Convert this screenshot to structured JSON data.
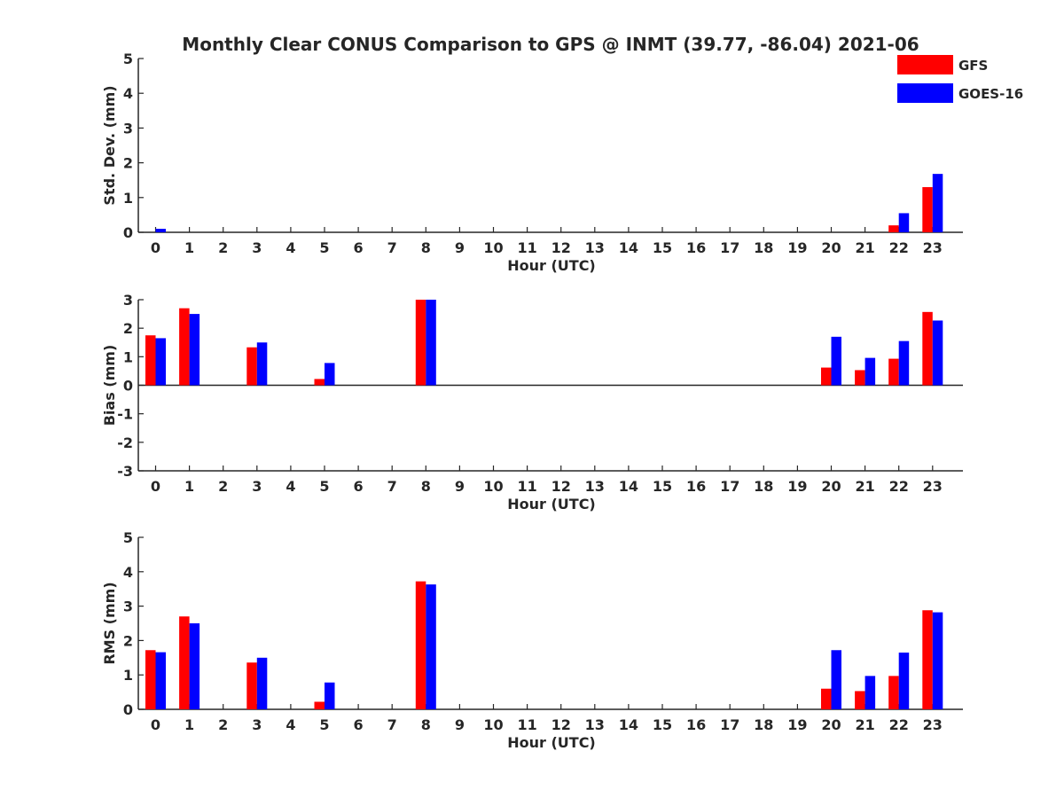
{
  "figure": {
    "title": "Monthly Clear CONUS Comparison to GPS @ INMT (39.77, -86.04) 2021-06"
  },
  "legend": {
    "placement": "top-right",
    "entries": [
      {
        "label": "GFS",
        "color": "#ff0000"
      },
      {
        "label": "GOES-16",
        "color": "#0000ff"
      }
    ]
  },
  "chart_data": [
    {
      "type": "bar",
      "xlabel": "Hour (UTC)",
      "ylabel": "Std. Dev. (mm)",
      "ylim": [
        0,
        5
      ],
      "yticks": [
        0,
        1,
        2,
        3,
        4,
        5
      ],
      "categories": [
        "0",
        "1",
        "2",
        "3",
        "4",
        "5",
        "6",
        "7",
        "8",
        "9",
        "10",
        "11",
        "12",
        "13",
        "14",
        "15",
        "16",
        "17",
        "18",
        "19",
        "20",
        "21",
        "22",
        "23"
      ],
      "series": [
        {
          "name": "GFS",
          "color": "#ff0000",
          "values": [
            0,
            0,
            0,
            0,
            0,
            0,
            0,
            0,
            0,
            0,
            0,
            0,
            0,
            0,
            0,
            0,
            0,
            0,
            0,
            0,
            0,
            0,
            0.2,
            1.3
          ]
        },
        {
          "name": "GOES-16",
          "color": "#0000ff",
          "values": [
            0.1,
            0,
            0,
            0,
            0,
            0,
            0,
            0,
            0,
            0,
            0,
            0,
            0,
            0,
            0,
            0,
            0,
            0,
            0,
            0,
            0,
            0,
            0.55,
            1.68
          ]
        }
      ]
    },
    {
      "type": "bar",
      "xlabel": "Hour (UTC)",
      "ylabel": "Bias (mm)",
      "ylim": [
        -3,
        3
      ],
      "yticks": [
        -3,
        -2,
        -1,
        0,
        1,
        2,
        3
      ],
      "categories": [
        "0",
        "1",
        "2",
        "3",
        "4",
        "5",
        "6",
        "7",
        "8",
        "9",
        "10",
        "11",
        "12",
        "13",
        "14",
        "15",
        "16",
        "17",
        "18",
        "19",
        "20",
        "21",
        "22",
        "23"
      ],
      "series": [
        {
          "name": "GFS",
          "color": "#ff0000",
          "values": [
            1.75,
            2.7,
            0,
            1.33,
            0,
            0.22,
            0,
            0,
            3.0,
            0,
            0,
            0,
            0,
            0,
            0,
            0,
            0,
            0,
            0,
            0,
            0.62,
            0.53,
            0.93,
            2.57
          ]
        },
        {
          "name": "GOES-16",
          "color": "#0000ff",
          "values": [
            1.65,
            2.5,
            0,
            1.5,
            0,
            0.78,
            0,
            0,
            3.0,
            0,
            0,
            0,
            0,
            0,
            0,
            0,
            0,
            0,
            0,
            0,
            1.7,
            0.96,
            1.55,
            2.27
          ]
        }
      ]
    },
    {
      "type": "bar",
      "xlabel": "Hour (UTC)",
      "ylabel": "RMS (mm)",
      "ylim": [
        0,
        5
      ],
      "yticks": [
        0,
        1,
        2,
        3,
        4,
        5
      ],
      "categories": [
        "0",
        "1",
        "2",
        "3",
        "4",
        "5",
        "6",
        "7",
        "8",
        "9",
        "10",
        "11",
        "12",
        "13",
        "14",
        "15",
        "16",
        "17",
        "18",
        "19",
        "20",
        "21",
        "22",
        "23"
      ],
      "series": [
        {
          "name": "GFS",
          "color": "#ff0000",
          "values": [
            1.72,
            2.7,
            0,
            1.36,
            0,
            0.22,
            0,
            0,
            3.72,
            0,
            0,
            0,
            0,
            0,
            0,
            0,
            0,
            0,
            0,
            0,
            0.6,
            0.53,
            0.97,
            2.88
          ]
        },
        {
          "name": "GOES-16",
          "color": "#0000ff",
          "values": [
            1.66,
            2.5,
            0,
            1.5,
            0,
            0.78,
            0,
            0,
            3.63,
            0,
            0,
            0,
            0,
            0,
            0,
            0,
            0,
            0,
            0,
            0,
            1.72,
            0.97,
            1.65,
            2.82
          ]
        }
      ]
    }
  ]
}
